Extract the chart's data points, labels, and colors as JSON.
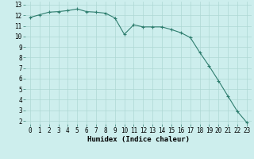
{
  "x": [
    0,
    1,
    2,
    3,
    4,
    5,
    6,
    7,
    8,
    9,
    10,
    11,
    12,
    13,
    14,
    15,
    16,
    17,
    18,
    19,
    20,
    21,
    22,
    23
  ],
  "y": [
    11.8,
    12.05,
    12.3,
    12.35,
    12.45,
    12.6,
    12.35,
    12.3,
    12.2,
    11.75,
    10.2,
    11.1,
    10.9,
    10.9,
    10.9,
    10.65,
    10.35,
    9.9,
    8.5,
    7.2,
    5.8,
    4.35,
    2.9,
    1.85
  ],
  "xlabel": "Humidex (Indice chaleur)",
  "xlim": [
    -0.5,
    23.5
  ],
  "ylim": [
    1.7,
    13.3
  ],
  "yticks": [
    2,
    3,
    4,
    5,
    6,
    7,
    8,
    9,
    10,
    11,
    12,
    13
  ],
  "xticks": [
    0,
    1,
    2,
    3,
    4,
    5,
    6,
    7,
    8,
    9,
    10,
    11,
    12,
    13,
    14,
    15,
    16,
    17,
    18,
    19,
    20,
    21,
    22,
    23
  ],
  "line_color": "#2e7d6e",
  "marker": "+",
  "marker_size": 3,
  "marker_lw": 0.8,
  "line_width": 0.8,
  "bg_color": "#cdeeed",
  "grid_color": "#aed8d4",
  "label_fontsize": 6.5,
  "tick_fontsize": 5.5
}
